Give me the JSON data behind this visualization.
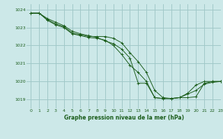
{
  "title": "Graphe pression niveau de la mer (hPa)",
  "background_color": "#cce8e8",
  "grid_color": "#a0c8c8",
  "line_color": "#1a5c1a",
  "xlim": [
    -0.5,
    23
  ],
  "ylim": [
    1018.5,
    1024.3
  ],
  "yticks": [
    1019,
    1020,
    1021,
    1022,
    1023,
    1024
  ],
  "xticks": [
    0,
    1,
    2,
    3,
    4,
    5,
    6,
    7,
    8,
    9,
    10,
    11,
    12,
    13,
    14,
    15,
    16,
    17,
    18,
    19,
    20,
    21,
    22,
    23
  ],
  "series": [
    [
      1023.8,
      1023.8,
      1023.5,
      1023.3,
      1023.1,
      1022.8,
      1022.65,
      1022.55,
      1022.45,
      1022.25,
      1022.1,
      1021.8,
      1021.3,
      1019.9,
      1019.9,
      1019.1,
      1019.05,
      1019.05,
      1019.1,
      1019.1,
      1019.15,
      1019.9,
      1020.0,
      1020.0
    ],
    [
      1023.8,
      1023.8,
      1023.45,
      1023.2,
      1023.05,
      1022.7,
      1022.6,
      1022.5,
      1022.5,
      1022.5,
      1022.4,
      1022.15,
      1021.6,
      1021.1,
      1020.5,
      1019.5,
      1019.1,
      1019.05,
      1019.1,
      1019.35,
      1019.8,
      1020.0,
      1020.0,
      1020.0
    ],
    [
      1023.8,
      1023.8,
      1023.4,
      1023.15,
      1023.0,
      1022.65,
      1022.55,
      1022.45,
      1022.4,
      1022.3,
      1022.0,
      1021.5,
      1020.9,
      1020.5,
      1020.0,
      1019.1,
      1019.05,
      1019.05,
      1019.1,
      1019.3,
      1019.5,
      1019.85,
      1019.95,
      1020.0
    ]
  ]
}
